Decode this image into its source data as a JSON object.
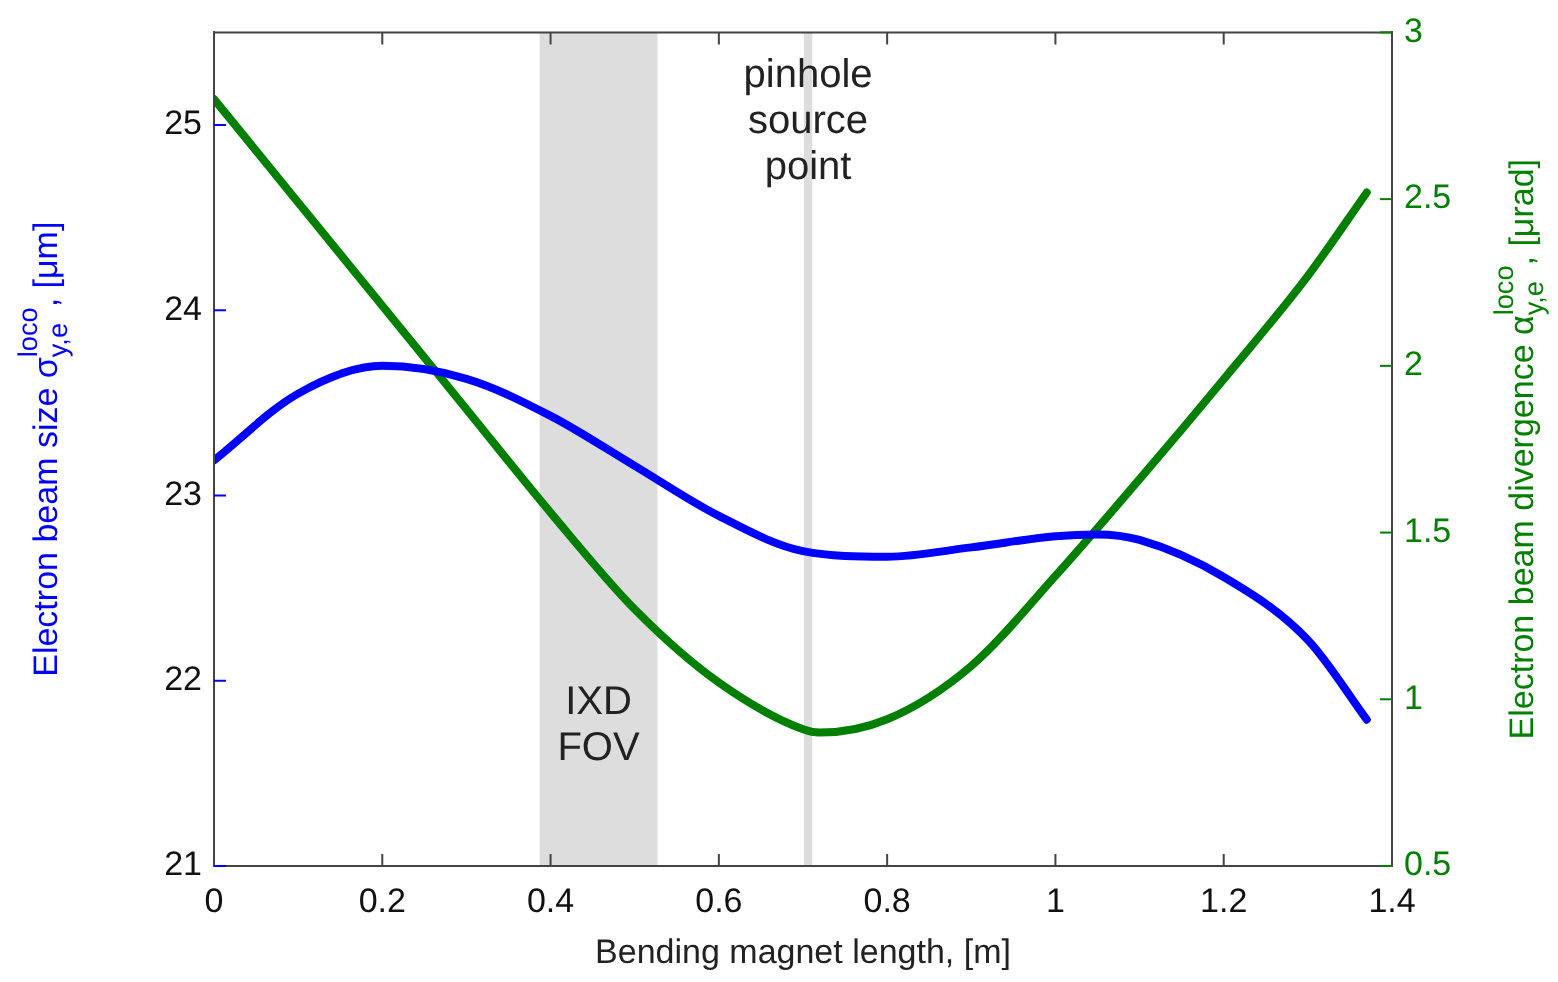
{
  "chart_data": {
    "type": "line",
    "xlabel": "Bending magnet length, [m]",
    "ylabel": "Electron beam size σ$_{y,e}$$^{loco}$, [μm]",
    "y2label": "Electron beam divergence α$_{y,e}$$^{loco}$, [μrad]",
    "xlim": [
      0,
      1.4
    ],
    "xticks": [
      0,
      0.2,
      0.4,
      0.6,
      0.8,
      1,
      1.2,
      1.4
    ],
    "ylim": [
      21,
      25.5
    ],
    "yticks": [
      21,
      22,
      23,
      24,
      25
    ],
    "y2lim": [
      0.5,
      3
    ],
    "y2ticks": [
      0.5,
      1,
      1.5,
      2,
      2.5,
      3
    ],
    "series": [
      {
        "color": "#0000ff",
        "x": [
          0,
          0.1,
          0.2,
          0.3,
          0.4,
          0.5,
          0.6,
          0.7,
          0.8,
          0.9,
          1,
          1.05,
          1.1,
          1.2,
          1.3,
          1.37
        ],
        "values": [
          23.19,
          23.55,
          23.7,
          23.63,
          23.43,
          23.16,
          22.89,
          22.7,
          22.67,
          22.72,
          22.78,
          22.79,
          22.76,
          22.56,
          22.22,
          21.79
        ]
      },
      {
        "color": "#007f00",
        "axis": "y2",
        "x": [
          0,
          0.1,
          0.2,
          0.3,
          0.4,
          0.5,
          0.6,
          0.7,
          0.72,
          0.8,
          0.9,
          1,
          1.1,
          1.2,
          1.3,
          1.37
        ],
        "values": [
          2.8,
          2.49,
          2.18,
          1.87,
          1.56,
          1.27,
          1.05,
          0.91,
          0.9,
          0.94,
          1.1,
          1.37,
          1.66,
          1.96,
          2.27,
          2.52
        ]
      }
    ],
    "bands": [
      {
        "axis": "x",
        "from": 0.387,
        "to": 0.527,
        "color": "#dddddd",
        "label": "IXD\nFOV"
      },
      {
        "axis": "x",
        "from": 0.701,
        "to": 0.711,
        "color": "#dddddd",
        "label": "pinhole\nsource\npoint"
      }
    ],
    "grid": false,
    "legend": false,
    "line_style": "solid",
    "marker": "none"
  }
}
